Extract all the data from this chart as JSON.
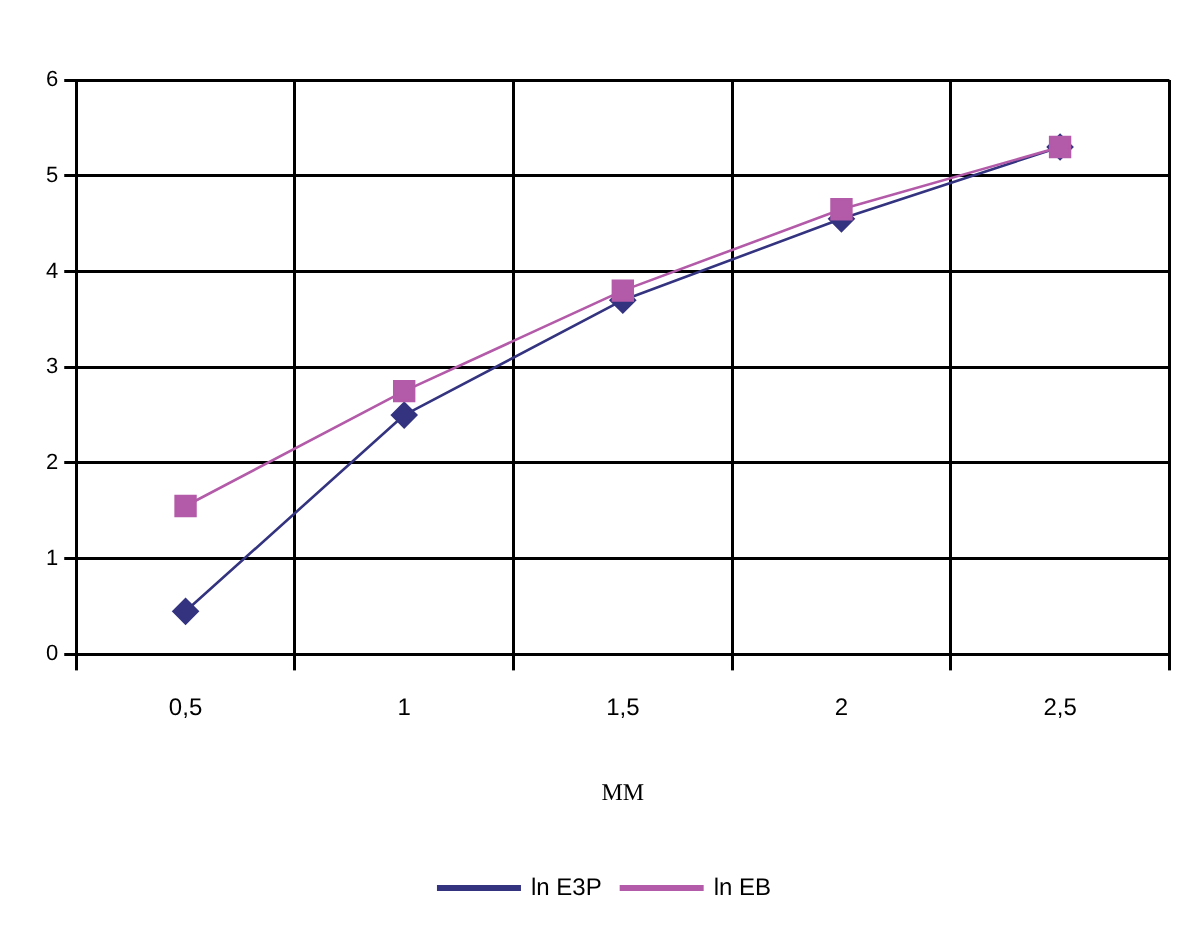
{
  "chart_data": {
    "type": "line",
    "xlabel": "MM",
    "categories": [
      "0,5",
      "1",
      "1,5",
      "2",
      "2,5"
    ],
    "ylim": [
      0,
      6
    ],
    "yticks": [
      0,
      1,
      2,
      3,
      4,
      5,
      6
    ],
    "grid": true,
    "legend": "bottom",
    "line_style": "solid",
    "series": [
      {
        "name": "ln E3P",
        "color": "#333380",
        "marker": "diamond",
        "values": [
          0.45,
          2.5,
          3.7,
          4.55,
          5.3
        ]
      },
      {
        "name": "ln EB",
        "color": "#b35aa8",
        "marker": "square",
        "values": [
          1.55,
          2.75,
          3.8,
          4.65,
          5.3
        ]
      }
    ]
  }
}
